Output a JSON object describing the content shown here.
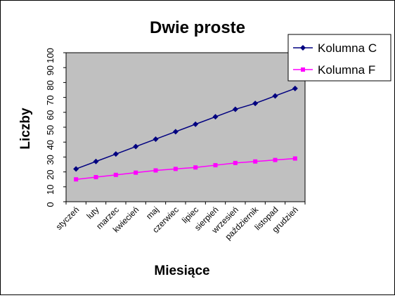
{
  "chart_data": {
    "type": "line",
    "title": "Dwie proste",
    "xlabel": "Miesiące",
    "ylabel": "Liczby",
    "categories": [
      "styczeń",
      "luty",
      "marzec",
      "kwiecień",
      "maj",
      "czerwiec",
      "lipiec",
      "sierpień",
      "wrzesień",
      "październik",
      "listopad",
      "grudzień"
    ],
    "ylim": [
      0,
      100
    ],
    "yticks": [
      "0",
      "10",
      "20",
      "30",
      "40",
      "50",
      "60",
      "70",
      "80",
      "90",
      "100"
    ],
    "grid": false,
    "legend_position": "right",
    "plot_background": "#C0C0C0",
    "series": [
      {
        "name": "Kolumna C",
        "color": "#000080",
        "marker": "diamond",
        "values": [
          22,
          27,
          32,
          37,
          42,
          47,
          52,
          57,
          62,
          66,
          71,
          76
        ]
      },
      {
        "name": "Kolumna F",
        "color": "#FF00FF",
        "marker": "square",
        "values": [
          15,
          16.5,
          18,
          19.5,
          21,
          22,
          23,
          24.5,
          26,
          27,
          28,
          29
        ]
      }
    ]
  }
}
